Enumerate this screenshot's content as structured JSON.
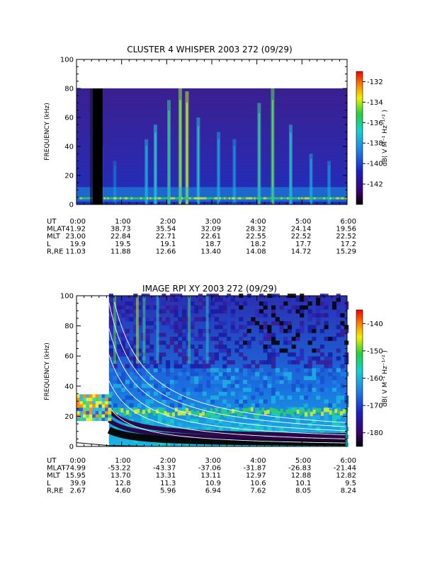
{
  "chart_data": [
    {
      "type": "heatmap",
      "title": "CLUSTER 4 WHISPER 2003 272 (09/29)",
      "ylabel": "FREQUENCY (kHz)",
      "ylim": [
        0,
        100
      ],
      "yticks": [
        0,
        20,
        40,
        60,
        80,
        100
      ],
      "data_ymax": 80,
      "x": [
        "0:00",
        "1:00",
        "2:00",
        "3:00",
        "4:00",
        "5:00",
        "6:00"
      ],
      "xlim_hours": [
        0,
        6
      ],
      "colorbar": {
        "label": "dB( V M⁻¹ Hz⁻¹ᐟ² )",
        "range": [
          -144,
          -131
        ],
        "ticks": [
          -132,
          -134,
          -136,
          -138,
          -140,
          -142
        ]
      },
      "ephemeris": [
        {
          "name": "UT",
          "values": [
            "0:00",
            "1:00",
            "2:00",
            "3:00",
            "4:00",
            "5:00",
            "6:00"
          ]
        },
        {
          "name": "MLAT",
          "values": [
            "41.92",
            "38.73",
            "35.54",
            "32.09",
            "28.32",
            "24.14",
            "19.56"
          ]
        },
        {
          "name": "MLT",
          "values": [
            "23.00",
            "22.84",
            "22.71",
            "22.61",
            "22.55",
            "22.52",
            "22.52"
          ]
        },
        {
          "name": "L",
          "values": [
            "19.9",
            "19.5",
            "19.1",
            "18.7",
            "18.2",
            "17.7",
            "17.2"
          ]
        },
        {
          "name": "R,RE",
          "values": [
            "11.03",
            "11.88",
            "12.66",
            "13.40",
            "14.08",
            "14.72",
            "15.29"
          ]
        }
      ]
    },
    {
      "type": "heatmap",
      "title": "IMAGE RPI XY 2003 272 (09/29)",
      "ylabel": "FREQUENCY (kHz)",
      "ylim": [
        0,
        100
      ],
      "yticks": [
        0,
        20,
        40,
        60,
        80,
        100
      ],
      "x": [
        "0:00",
        "1:00",
        "2:00",
        "3:00",
        "4:00",
        "5:00",
        "6:00"
      ],
      "xlim_hours": [
        0,
        6
      ],
      "colorbar": {
        "label": "dB( V M⁻¹ Hz⁻¹ᐟ² )",
        "range": [
          -185,
          -135
        ],
        "ticks": [
          -140,
          -150,
          -160,
          -170,
          -180
        ]
      },
      "ephemeris": [
        {
          "name": "UT",
          "values": [
            "0:00",
            "1:00",
            "2:00",
            "3:00",
            "4:00",
            "5:00",
            "6:00"
          ]
        },
        {
          "name": "MLAT",
          "values": [
            "-74.99",
            "-53.22",
            "-43.37",
            "-37.06",
            "-31.87",
            "-26.83",
            "-21.44"
          ]
        },
        {
          "name": "MLT",
          "values": [
            "15.95",
            "13.70",
            "13.31",
            "13.11",
            "12.97",
            "12.88",
            "12.82"
          ]
        },
        {
          "name": "L",
          "values": [
            "39.9",
            "12.8",
            "11.3",
            "10.9",
            "10.6",
            "10.1",
            "9.5"
          ]
        },
        {
          "name": "R,RE",
          "values": [
            "2.67",
            "4.60",
            "5.96",
            "6.94",
            "7.62",
            "8.05",
            "8.24"
          ]
        }
      ]
    }
  ]
}
